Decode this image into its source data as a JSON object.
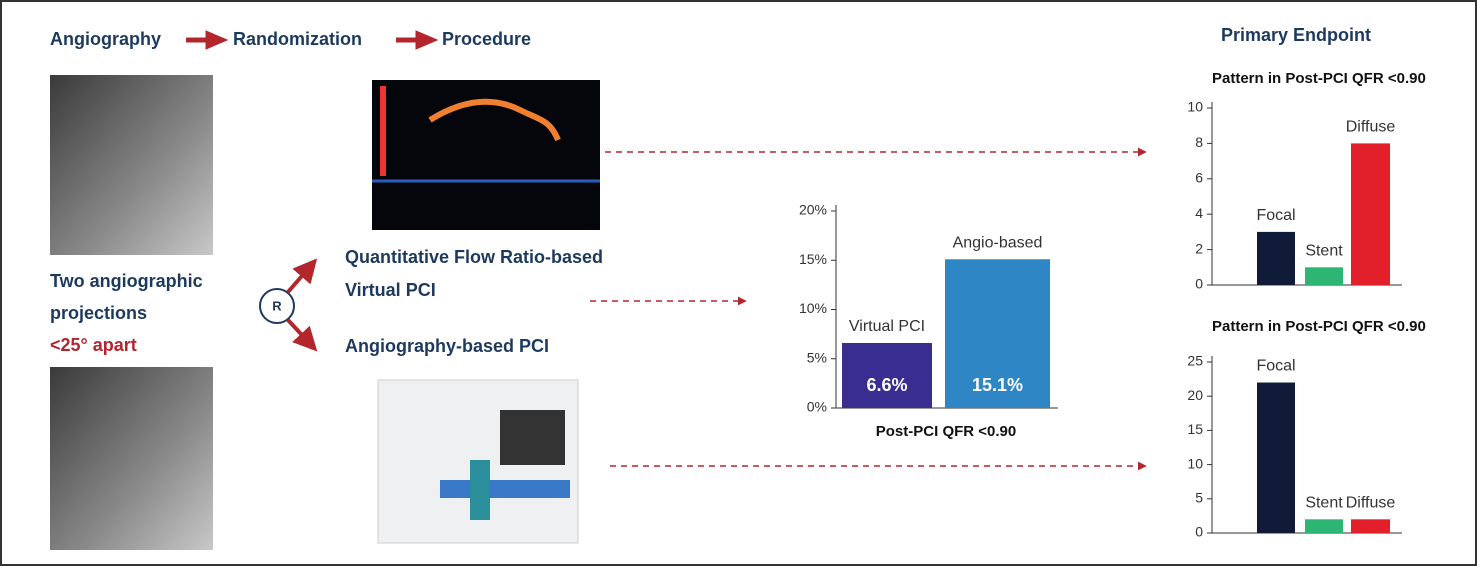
{
  "steps": [
    "Angiography",
    "Randomization",
    "Procedure"
  ],
  "primary_endpoint": "Primary Endpoint",
  "projections": {
    "lines": [
      "Two angiographic",
      "projections"
    ],
    "note": "<25° apart"
  },
  "randomization": "R",
  "arms": [
    {
      "lines": [
        "Quantitative Flow Ratio-based",
        "Virtual PCI"
      ]
    },
    {
      "lines": [
        "Angiography-based PCI"
      ]
    }
  ],
  "chart_data": [
    {
      "type": "bar",
      "x_label": "Post-PCI QFR <0.90",
      "categories": [
        "Virtual PCI",
        "Angio-based"
      ],
      "values": [
        6.6,
        15.1
      ],
      "value_labels": [
        "6.6%",
        "15.1%"
      ],
      "colors": [
        "#3a2d91",
        "#2e86c4"
      ],
      "ylim": [
        0,
        20
      ],
      "yticks": [
        {
          "value": 0,
          "label": "0%"
        },
        {
          "value": 5,
          "label": "5%"
        },
        {
          "value": 10,
          "label": "10%"
        },
        {
          "value": 15,
          "label": "15%"
        },
        {
          "value": 20,
          "label": "20%"
        }
      ]
    },
    {
      "type": "bar",
      "title": "Pattern in Post-PCI QFR <0.90",
      "categories": [
        "Focal",
        "Stent",
        "Diffuse"
      ],
      "values": [
        3,
        1,
        8
      ],
      "colors": [
        "#0f1b38",
        "#2db574",
        "#e1202c"
      ],
      "ylim": [
        0,
        10
      ],
      "yticks": [
        0,
        2,
        4,
        6,
        8,
        10
      ]
    },
    {
      "type": "bar",
      "title": "Pattern in Post-PCI QFR <0.90",
      "categories": [
        "Focal",
        "Stent",
        "Diffuse"
      ],
      "values": [
        22,
        2,
        2
      ],
      "colors": [
        "#0f1b38",
        "#2db574",
        "#e1202c"
      ],
      "ylim": [
        0,
        25
      ],
      "yticks": [
        0,
        5,
        10,
        15,
        20,
        25
      ]
    }
  ]
}
